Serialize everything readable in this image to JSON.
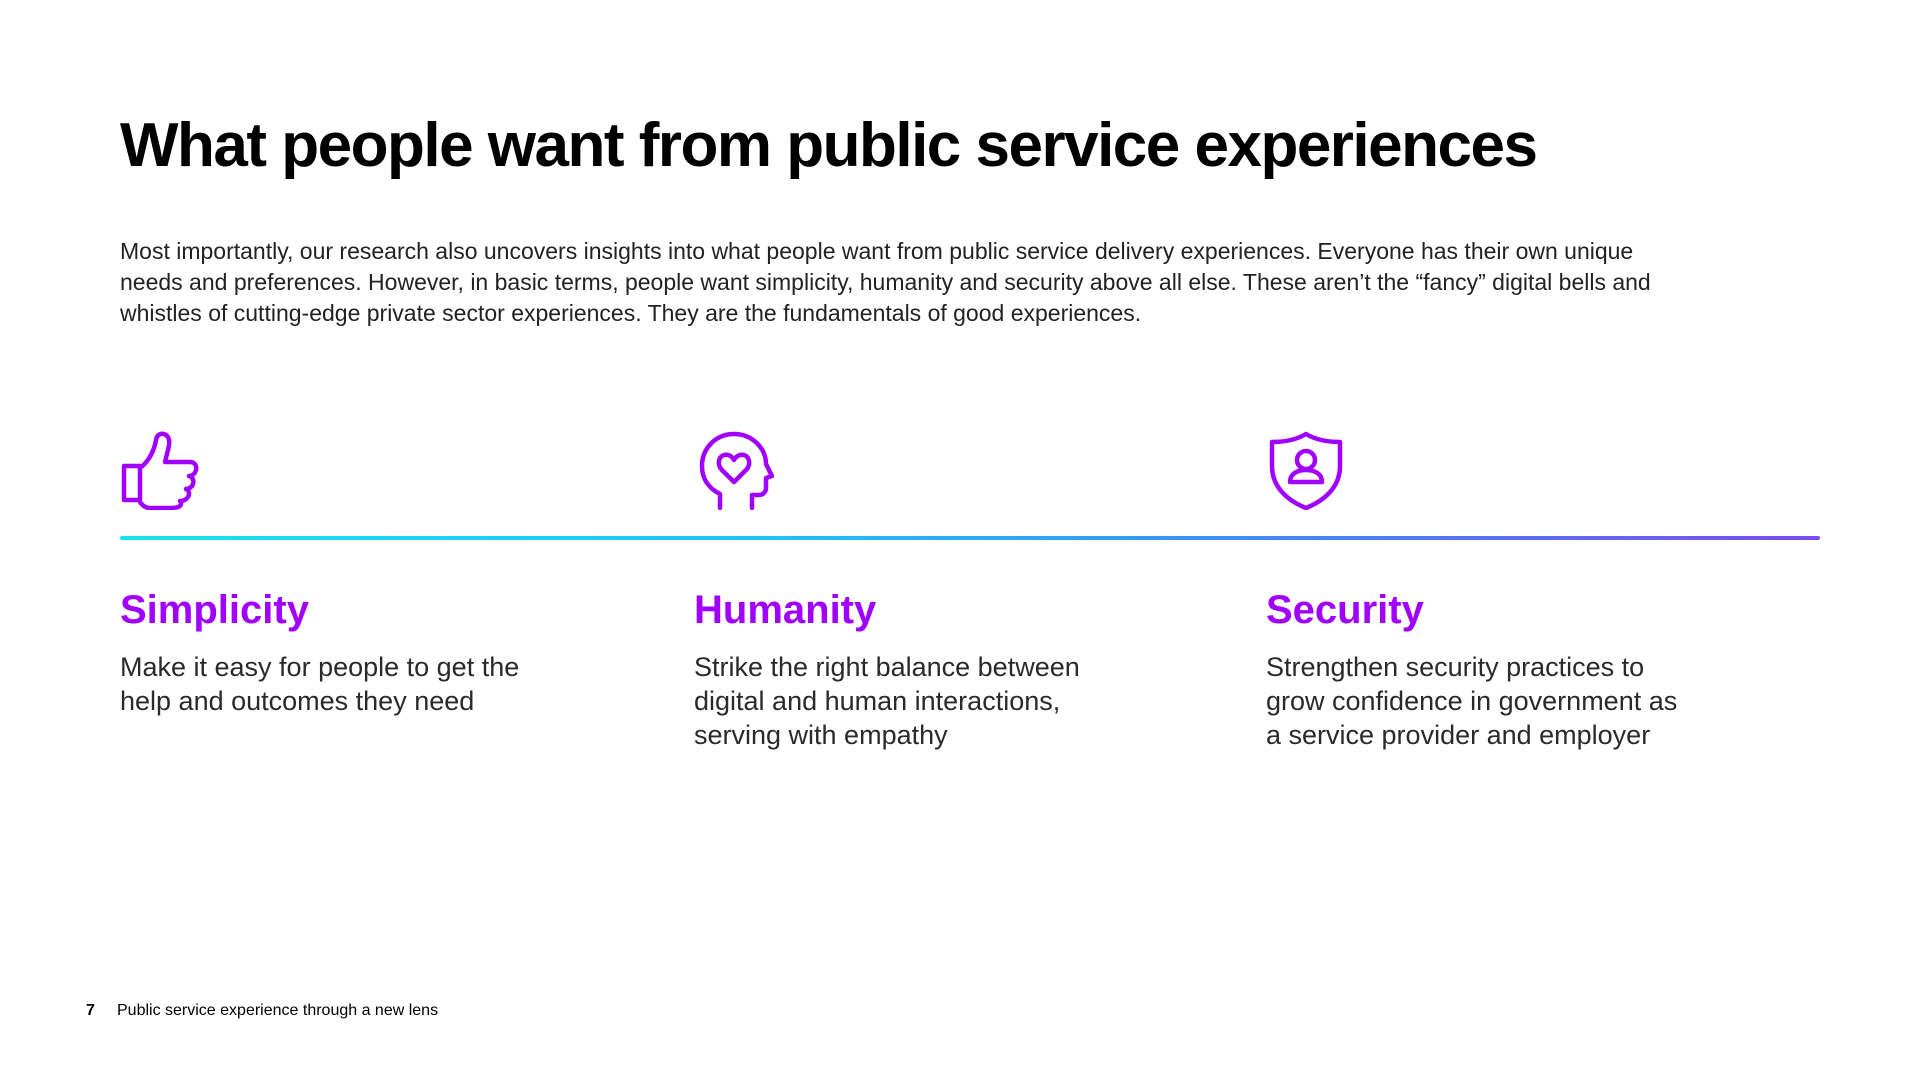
{
  "page": {
    "title": "What people want from public service experiences",
    "intro": "Most importantly, our research also uncovers insights into what people want from public service delivery experiences. Everyone has their own unique needs and preferences. However, in basic terms, people want simplicity, humanity and security above all else. These aren’t the “fancy” digital bells and whistles of cutting-edge private sector experiences. They are the fundamentals of good experiences."
  },
  "pillars": [
    {
      "icon": "thumbs-up-icon",
      "heading": "Simplicity",
      "text": "Make it easy for people to get the help and outcomes they need"
    },
    {
      "icon": "head-heart-icon",
      "heading": "Humanity",
      "text": "Strike the right balance between digital and human interactions, serving with empathy"
    },
    {
      "icon": "shield-person-icon",
      "heading": "Security",
      "text": "Strengthen security practices to grow confidence in government as a service provider and employer"
    }
  ],
  "footer": {
    "page_number": "7",
    "label": "Public service experience through a new lens"
  },
  "colors": {
    "accent": "#a100ff",
    "gradient_start": "#18e2f2",
    "gradient_end": "#7b4cf2"
  }
}
